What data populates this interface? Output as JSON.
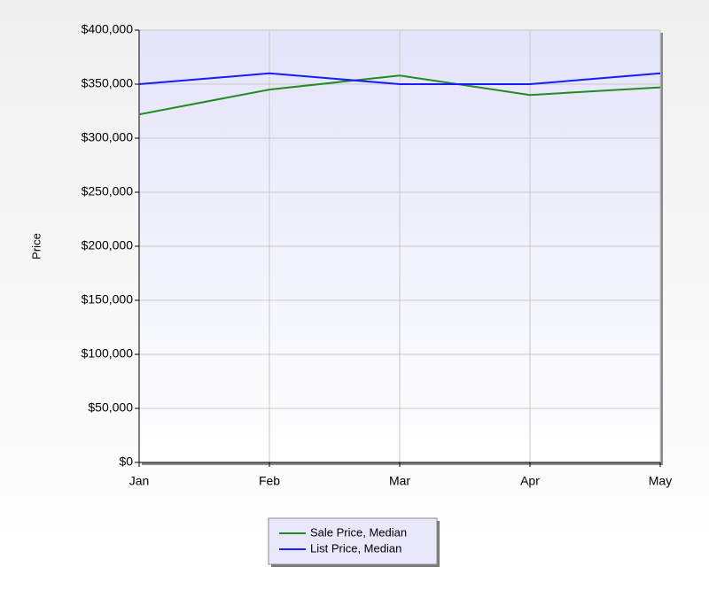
{
  "chart_data": {
    "type": "line",
    "y_label": "Price",
    "categories": [
      "Jan",
      "Feb",
      "Mar",
      "Apr",
      "May"
    ],
    "series": [
      {
        "name": "Sale Price, Median",
        "color": "#228b22",
        "values": [
          322000,
          345000,
          358000,
          340000,
          347000
        ]
      },
      {
        "name": "List Price, Median",
        "color": "#1a1aff",
        "values": [
          350000,
          360000,
          350000,
          350000,
          360000
        ]
      }
    ],
    "ylim": [
      0,
      400000
    ],
    "yticks": [
      {
        "value": 0,
        "label": "$0"
      },
      {
        "value": 50000,
        "label": "$50,000"
      },
      {
        "value": 100000,
        "label": "$100,000"
      },
      {
        "value": 150000,
        "label": "$150,000"
      },
      {
        "value": 200000,
        "label": "$200,000"
      },
      {
        "value": 250000,
        "label": "$250,000"
      },
      {
        "value": 300000,
        "label": "$300,000"
      },
      {
        "value": 350000,
        "label": "$350,000"
      },
      {
        "value": 400000,
        "label": "$400,000"
      }
    ],
    "grid": true
  }
}
